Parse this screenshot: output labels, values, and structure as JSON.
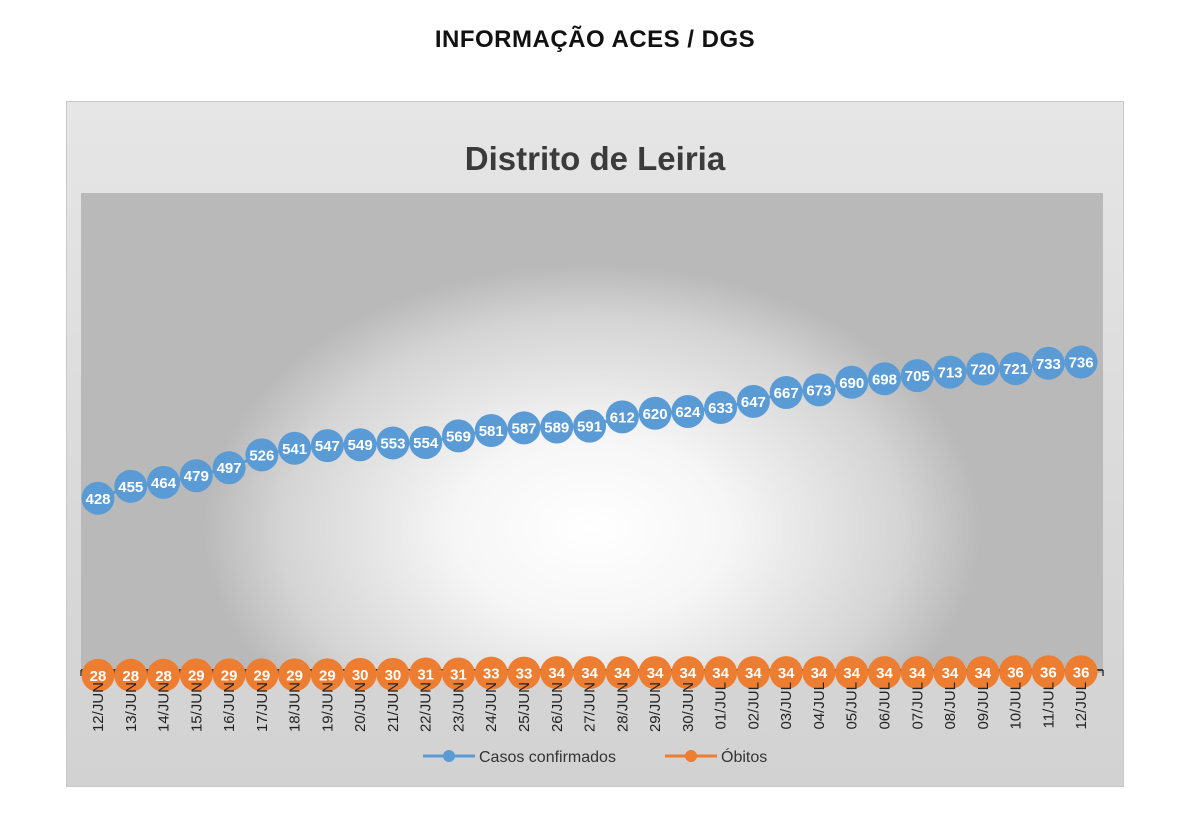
{
  "page": {
    "heading": "INFORMAÇÃO ACES / DGS"
  },
  "chart_data": {
    "type": "line",
    "title": "Distrito de Leiria",
    "xlabel": "",
    "ylabel": "",
    "grid": false,
    "legend_position": "bottom",
    "categories": [
      "12/JUN",
      "13/JUN",
      "14/JUN",
      "15/JUN",
      "16/JUN",
      "17/JUN",
      "18/JUN",
      "19/JUN",
      "20/JUN",
      "21/JUN",
      "22/JUN",
      "23/JUN",
      "24/JUN",
      "25/JUN",
      "26/JUN",
      "27/JUN",
      "28/JUN",
      "29/JUN",
      "30/JUN",
      "01/JUL",
      "02/JUL",
      "03/JUL",
      "04/JUL",
      "05/JUL",
      "06/JUL",
      "07/JUL",
      "08/JUL",
      "09/JUL",
      "10/JUL",
      "11/JUL",
      "12/JUL"
    ],
    "series": [
      {
        "name": "Casos confirmados",
        "color": "#5b9bd5",
        "values": [
          428,
          455,
          464,
          479,
          497,
          526,
          541,
          547,
          549,
          553,
          554,
          569,
          581,
          587,
          589,
          591,
          612,
          620,
          624,
          633,
          647,
          667,
          673,
          690,
          698,
          705,
          713,
          720,
          721,
          733,
          736
        ]
      },
      {
        "name": "Óbitos",
        "color": "#ed7d31",
        "values": [
          28,
          28,
          28,
          29,
          29,
          29,
          29,
          29,
          30,
          30,
          31,
          31,
          33,
          33,
          34,
          34,
          34,
          34,
          34,
          34,
          34,
          34,
          34,
          34,
          34,
          34,
          34,
          34,
          36,
          36,
          36
        ]
      }
    ]
  }
}
